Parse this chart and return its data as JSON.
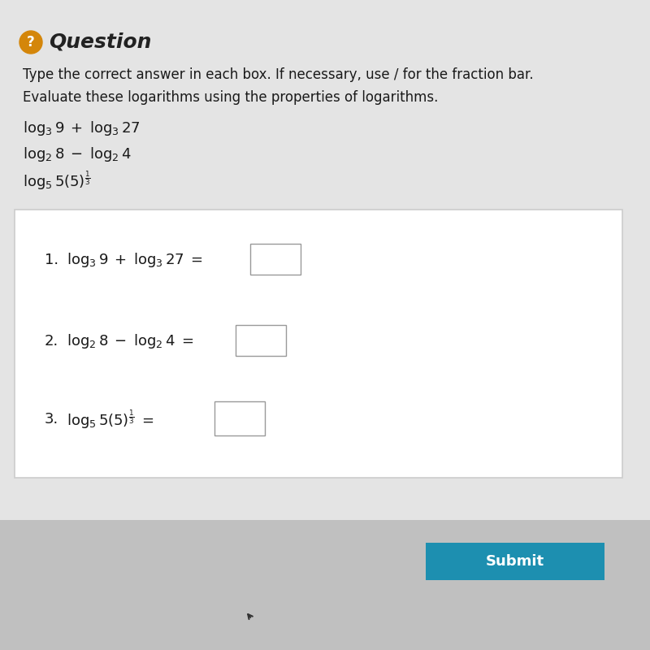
{
  "bg_outer": "#c8c8c8",
  "bg_top": "#e4e4e4",
  "bg_card": "#ffffff",
  "bg_bottom": "#c0c0c0",
  "question_icon_color": "#d4860a",
  "question_title": "Question",
  "question_title_color": "#222222",
  "instruction1": "Type the correct answer in each box. If necessary, use / for the fraction bar.",
  "instruction2": "Evaluate these logarithms using the properties of logarithms.",
  "submit_bg": "#1d8fb0",
  "submit_text": "Submit",
  "submit_text_color": "#ffffff",
  "body_text_color": "#1a1a1a",
  "card_border": "#cccccc",
  "box_border": "#999999"
}
